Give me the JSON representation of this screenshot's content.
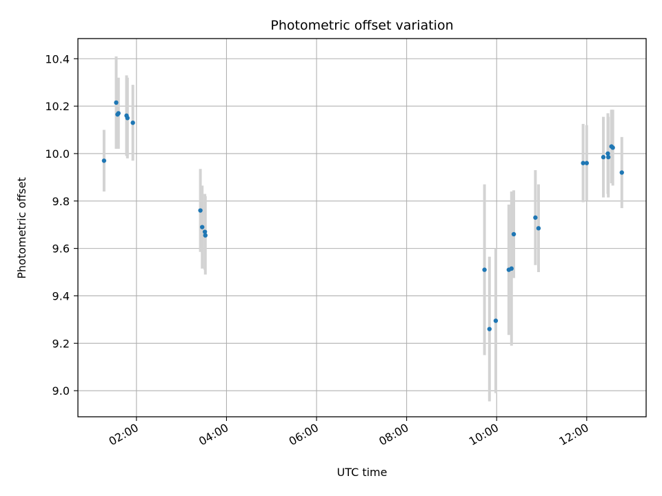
{
  "chart_data": {
    "type": "scatter",
    "title": "Photometric offset variation",
    "xlabel": "UTC time",
    "ylabel": "Photometric offset",
    "x_unit": "hours (UTC)",
    "xlim": [
      0.7,
      13.32
    ],
    "ylim": [
      8.89,
      10.485
    ],
    "grid": true,
    "x_ticks": [
      {
        "value": 2,
        "label": "02:00"
      },
      {
        "value": 4,
        "label": "04:00"
      },
      {
        "value": 6,
        "label": "06:00"
      },
      {
        "value": 8,
        "label": "08:00"
      },
      {
        "value": 10,
        "label": "10:00"
      },
      {
        "value": 12,
        "label": "12:00"
      }
    ],
    "y_ticks": [
      {
        "value": 9.0,
        "label": "9.0"
      },
      {
        "value": 9.2,
        "label": "9.2"
      },
      {
        "value": 9.4,
        "label": "9.4"
      },
      {
        "value": 9.6,
        "label": "9.6"
      },
      {
        "value": 9.8,
        "label": "9.8"
      },
      {
        "value": 10.0,
        "label": "10.0"
      },
      {
        "value": 10.2,
        "label": "10.2"
      },
      {
        "value": 10.4,
        "label": "10.4"
      }
    ],
    "series": [
      {
        "name": "offset",
        "marker_color": "#1f77b4",
        "errorbar_color": "#d3d3d3",
        "points": [
          {
            "x": 1.28,
            "y": 9.97,
            "err": 0.13
          },
          {
            "x": 1.55,
            "y": 10.215,
            "err": 0.195
          },
          {
            "x": 1.58,
            "y": 10.165,
            "err": 0.145
          },
          {
            "x": 1.6,
            "y": 10.17,
            "err": 0.15
          },
          {
            "x": 1.78,
            "y": 10.16,
            "err": 0.17
          },
          {
            "x": 1.8,
            "y": 10.15,
            "err": 0.17
          },
          {
            "x": 1.92,
            "y": 10.13,
            "err": 0.16
          },
          {
            "x": 3.42,
            "y": 9.76,
            "err": 0.175
          },
          {
            "x": 3.46,
            "y": 9.69,
            "err": 0.175
          },
          {
            "x": 3.52,
            "y": 9.67,
            "err": 0.16
          },
          {
            "x": 3.53,
            "y": 9.655,
            "err": 0.165
          },
          {
            "x": 9.73,
            "y": 9.51,
            "err": 0.36
          },
          {
            "x": 9.84,
            "y": 9.26,
            "err": 0.305
          },
          {
            "x": 9.98,
            "y": 9.295,
            "err": 0.305
          },
          {
            "x": 10.27,
            "y": 9.51,
            "err": 0.275
          },
          {
            "x": 10.33,
            "y": 9.515,
            "err": 0.325
          },
          {
            "x": 10.38,
            "y": 9.66,
            "err": 0.185
          },
          {
            "x": 10.86,
            "y": 9.73,
            "err": 0.2
          },
          {
            "x": 10.93,
            "y": 9.685,
            "err": 0.185
          },
          {
            "x": 11.92,
            "y": 9.96,
            "err": 0.165
          },
          {
            "x": 12.0,
            "y": 9.96,
            "err": 0.16
          },
          {
            "x": 12.37,
            "y": 9.985,
            "err": 0.17
          },
          {
            "x": 12.47,
            "y": 10.0,
            "err": 0.17
          },
          {
            "x": 12.48,
            "y": 9.985,
            "err": 0.17
          },
          {
            "x": 12.55,
            "y": 10.03,
            "err": 0.155
          },
          {
            "x": 12.58,
            "y": 10.025,
            "err": 0.16
          },
          {
            "x": 12.78,
            "y": 9.92,
            "err": 0.15
          }
        ]
      }
    ]
  }
}
